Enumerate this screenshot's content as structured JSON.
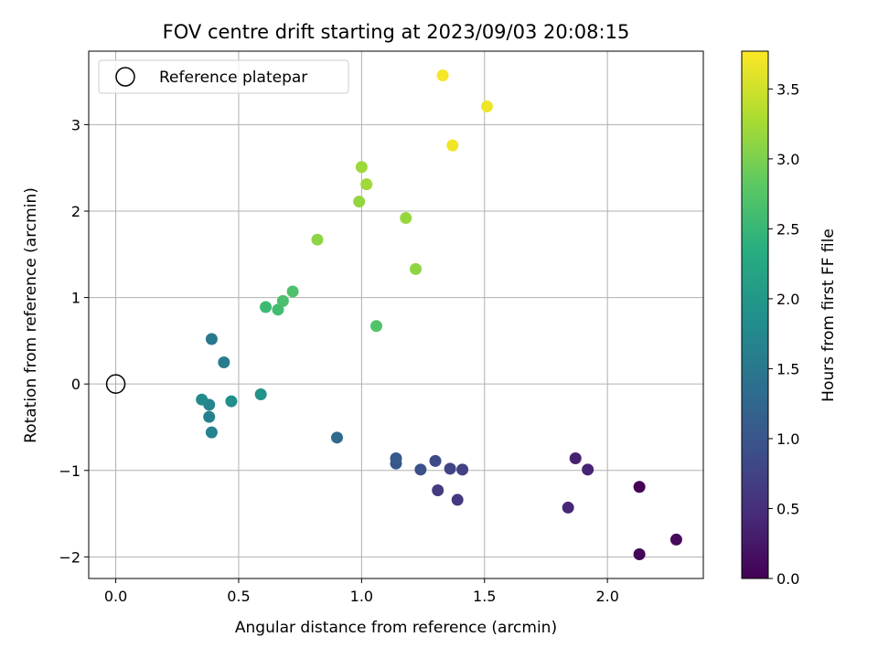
{
  "chart_data": {
    "type": "scatter",
    "title": "FOV centre drift starting at 2023/09/03 20:08:15",
    "xlabel": "Angular distance from reference (arcmin)",
    "ylabel": "Rotation from reference (arcmin)",
    "xlim": [
      -0.11,
      2.39
    ],
    "ylim": [
      -2.25,
      3.85
    ],
    "xticks": [
      0.0,
      0.5,
      1.0,
      1.5,
      2.0
    ],
    "xtick_labels": [
      "0.0",
      "0.5",
      "1.0",
      "1.5",
      "2.0"
    ],
    "yticks": [
      -2,
      -1,
      0,
      1,
      2,
      3
    ],
    "ytick_labels": [
      "−2",
      "−1",
      "0",
      "1",
      "2",
      "3"
    ],
    "grid": true,
    "legend": {
      "position": "top-left",
      "label": "Reference platepar"
    },
    "reference_point": {
      "x": 0.0,
      "y": 0.0
    },
    "colormap": "viridis",
    "colorbar": {
      "label": "Hours from first FF file",
      "min": 0.0,
      "max": 3.77,
      "ticks": [
        0.0,
        0.5,
        1.0,
        1.5,
        2.0,
        2.5,
        3.0,
        3.5
      ],
      "tick_labels": [
        "0.0",
        "0.5",
        "1.0",
        "1.5",
        "2.0",
        "2.5",
        "3.0",
        "3.5"
      ]
    },
    "points": [
      {
        "x": 2.13,
        "y": -1.19,
        "c": 0.0
      },
      {
        "x": 2.13,
        "y": -1.97,
        "c": 0.05
      },
      {
        "x": 2.28,
        "y": -1.8,
        "c": 0.1
      },
      {
        "x": 1.87,
        "y": -0.86,
        "c": 0.35
      },
      {
        "x": 1.92,
        "y": -0.99,
        "c": 0.38
      },
      {
        "x": 1.84,
        "y": -1.43,
        "c": 0.42
      },
      {
        "x": 1.39,
        "y": -1.34,
        "c": 0.62
      },
      {
        "x": 1.31,
        "y": -1.23,
        "c": 0.66
      },
      {
        "x": 1.41,
        "y": -0.99,
        "c": 0.72
      },
      {
        "x": 1.36,
        "y": -0.98,
        "c": 0.78
      },
      {
        "x": 1.3,
        "y": -0.89,
        "c": 0.84
      },
      {
        "x": 1.24,
        "y": -0.99,
        "c": 0.92
      },
      {
        "x": 1.14,
        "y": -0.92,
        "c": 1.0
      },
      {
        "x": 1.14,
        "y": -0.86,
        "c": 1.06
      },
      {
        "x": 0.9,
        "y": -0.62,
        "c": 1.3
      },
      {
        "x": 0.39,
        "y": 0.52,
        "c": 1.5
      },
      {
        "x": 0.44,
        "y": 0.25,
        "c": 1.58
      },
      {
        "x": 0.38,
        "y": -0.38,
        "c": 1.62
      },
      {
        "x": 0.39,
        "y": -0.56,
        "c": 1.66
      },
      {
        "x": 0.38,
        "y": -0.24,
        "c": 1.7
      },
      {
        "x": 0.35,
        "y": -0.18,
        "c": 1.78
      },
      {
        "x": 0.47,
        "y": -0.2,
        "c": 1.85
      },
      {
        "x": 0.59,
        "y": -0.12,
        "c": 1.92
      },
      {
        "x": 0.61,
        "y": 0.89,
        "c": 2.55
      },
      {
        "x": 0.66,
        "y": 0.86,
        "c": 2.6
      },
      {
        "x": 0.68,
        "y": 0.96,
        "c": 2.65
      },
      {
        "x": 0.72,
        "y": 1.07,
        "c": 2.68
      },
      {
        "x": 1.06,
        "y": 0.67,
        "c": 2.72
      },
      {
        "x": 0.82,
        "y": 1.67,
        "c": 3.1
      },
      {
        "x": 0.99,
        "y": 2.11,
        "c": 3.15
      },
      {
        "x": 1.0,
        "y": 2.51,
        "c": 3.2
      },
      {
        "x": 1.02,
        "y": 2.31,
        "c": 3.22
      },
      {
        "x": 1.18,
        "y": 1.92,
        "c": 3.17
      },
      {
        "x": 1.22,
        "y": 1.33,
        "c": 3.12
      },
      {
        "x": 1.33,
        "y": 3.57,
        "c": 3.72
      },
      {
        "x": 1.37,
        "y": 2.76,
        "c": 3.7
      },
      {
        "x": 1.51,
        "y": 3.21,
        "c": 3.68
      }
    ]
  }
}
